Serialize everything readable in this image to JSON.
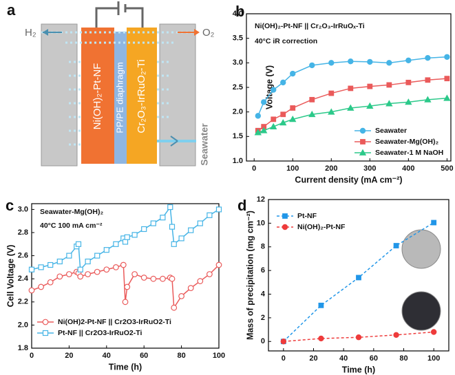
{
  "diagram": {
    "label": "a",
    "h2": "H₂",
    "o2": "O₂",
    "cathode": "Ni(OH)₂-Pt-NF",
    "diaphragm": "PP/PE diaphragm",
    "anode": "Cr₂O₃-IrRuO₂-Ti",
    "seawater": "Seawater"
  },
  "chart_data": [
    {
      "type": "line",
      "panel": "b",
      "annotations": [
        "Ni(OH)₂-Pt-NF || Cr₂O₃-IrRuOₓ-Ti",
        "40°C  iR correction"
      ],
      "x_label": "Current density (mA cm⁻²)",
      "y_label": "Voltage (V)",
      "x": [
        10,
        25,
        50,
        75,
        100,
        150,
        200,
        250,
        300,
        350,
        400,
        450,
        500
      ],
      "xlim": [
        -20,
        510
      ],
      "xticks": [
        0,
        100,
        200,
        300,
        400,
        500
      ],
      "ylim": [
        1.0,
        4.0
      ],
      "yticks": [
        {
          "value": 1,
          "label": "1.0"
        },
        1.5,
        {
          "value": 2,
          "label": "2.0"
        },
        2.5,
        {
          "value": 3,
          "label": "3.0"
        },
        3.5,
        {
          "value": 4,
          "label": "4.0"
        }
      ],
      "legend": "lower right",
      "markers_open": false,
      "line_style": "solid",
      "series": [
        {
          "name": "Seawater",
          "color": "#45b4e6",
          "marker": "circle",
          "values": [
            1.92,
            2.2,
            2.45,
            2.6,
            2.78,
            2.95,
            3.0,
            3.03,
            3.02,
            3.0,
            3.05,
            3.1,
            3.12
          ]
        },
        {
          "name": "Seawater-Mg(OH)₂",
          "color": "#ea5a5a",
          "marker": "square",
          "values": [
            1.62,
            1.7,
            1.85,
            1.95,
            2.08,
            2.25,
            2.38,
            2.48,
            2.52,
            2.55,
            2.6,
            2.65,
            2.68
          ]
        },
        {
          "name": "Seawater-1 M NaOH",
          "color": "#2cc98a",
          "marker": "triangle",
          "values": [
            1.58,
            1.62,
            1.7,
            1.78,
            1.85,
            1.95,
            2.0,
            2.08,
            2.12,
            2.17,
            2.2,
            2.25,
            2.28
          ]
        }
      ]
    },
    {
      "type": "line",
      "panel": "c",
      "annotations": [
        "Seawater-Mg(OH)₂",
        "40°C  100 mA cm⁻²"
      ],
      "x_label": "Time (h)",
      "y_label": "Cell Voltage (V)",
      "x": [
        0,
        5,
        10,
        15,
        20,
        24,
        25,
        26,
        30,
        35,
        40,
        45,
        49,
        50,
        51,
        55,
        60,
        65,
        70,
        74,
        75,
        76,
        80,
        85,
        90,
        95,
        100
      ],
      "xlim": [
        0,
        100
      ],
      "xticks": [
        0,
        20,
        40,
        60,
        80,
        100
      ],
      "ylim": [
        1.8,
        3.05
      ],
      "yticks": [
        1.8,
        {
          "value": 2,
          "label": "2.0"
        },
        2.2,
        2.4,
        2.6,
        2.8,
        {
          "value": 3,
          "label": "3.0"
        }
      ],
      "legend": "lower left",
      "markers_open": true,
      "line_style": "solid",
      "series": [
        {
          "name": "Ni(OH)2-Pt-NF || Cr2O3-IrRuO2-Ti",
          "color": "#ea5a5a",
          "marker": "circle",
          "values": [
            2.3,
            2.33,
            2.37,
            2.42,
            2.44,
            2.46,
            2.45,
            2.42,
            2.44,
            2.46,
            2.48,
            2.5,
            2.52,
            2.2,
            2.33,
            2.44,
            2.41,
            2.4,
            2.4,
            2.41,
            2.4,
            2.15,
            2.25,
            2.32,
            2.38,
            2.44,
            2.52
          ]
        },
        {
          "name": "Pt-NF || Cr2O3-IrRuO2-Ti",
          "color": "#45b4e6",
          "marker": "square",
          "values": [
            2.48,
            2.5,
            2.52,
            2.55,
            2.6,
            2.68,
            2.7,
            2.48,
            2.55,
            2.6,
            2.65,
            2.7,
            2.75,
            2.72,
            2.76,
            2.78,
            2.83,
            2.88,
            2.93,
            3.02,
            2.85,
            2.7,
            2.75,
            2.82,
            2.88,
            2.95,
            3.0
          ]
        }
      ]
    },
    {
      "type": "line",
      "panel": "d",
      "x_label": "Time (h)",
      "y_label": "Mass of precipitation (mg cm⁻²)",
      "x": [
        0,
        25,
        50,
        75,
        100
      ],
      "xlim": [
        -10,
        110
      ],
      "xticks": [
        0,
        20,
        40,
        60,
        80,
        100
      ],
      "ylim": [
        -0.8,
        12
      ],
      "yticks": [
        0,
        2,
        4,
        6,
        8,
        10,
        12
      ],
      "legend": "upper left",
      "markers_open": false,
      "line_style": "dashed",
      "series": [
        {
          "name": "Pt-NF",
          "color": "#2196e8",
          "marker": "square",
          "values": [
            0,
            3.05,
            5.4,
            8.1,
            10.05
          ]
        },
        {
          "name": "Ni(OH)₂-Pt-NF",
          "color": "#ee3b3b",
          "marker": "circle",
          "values": [
            0,
            0.25,
            0.35,
            0.55,
            0.8
          ]
        }
      ]
    }
  ]
}
